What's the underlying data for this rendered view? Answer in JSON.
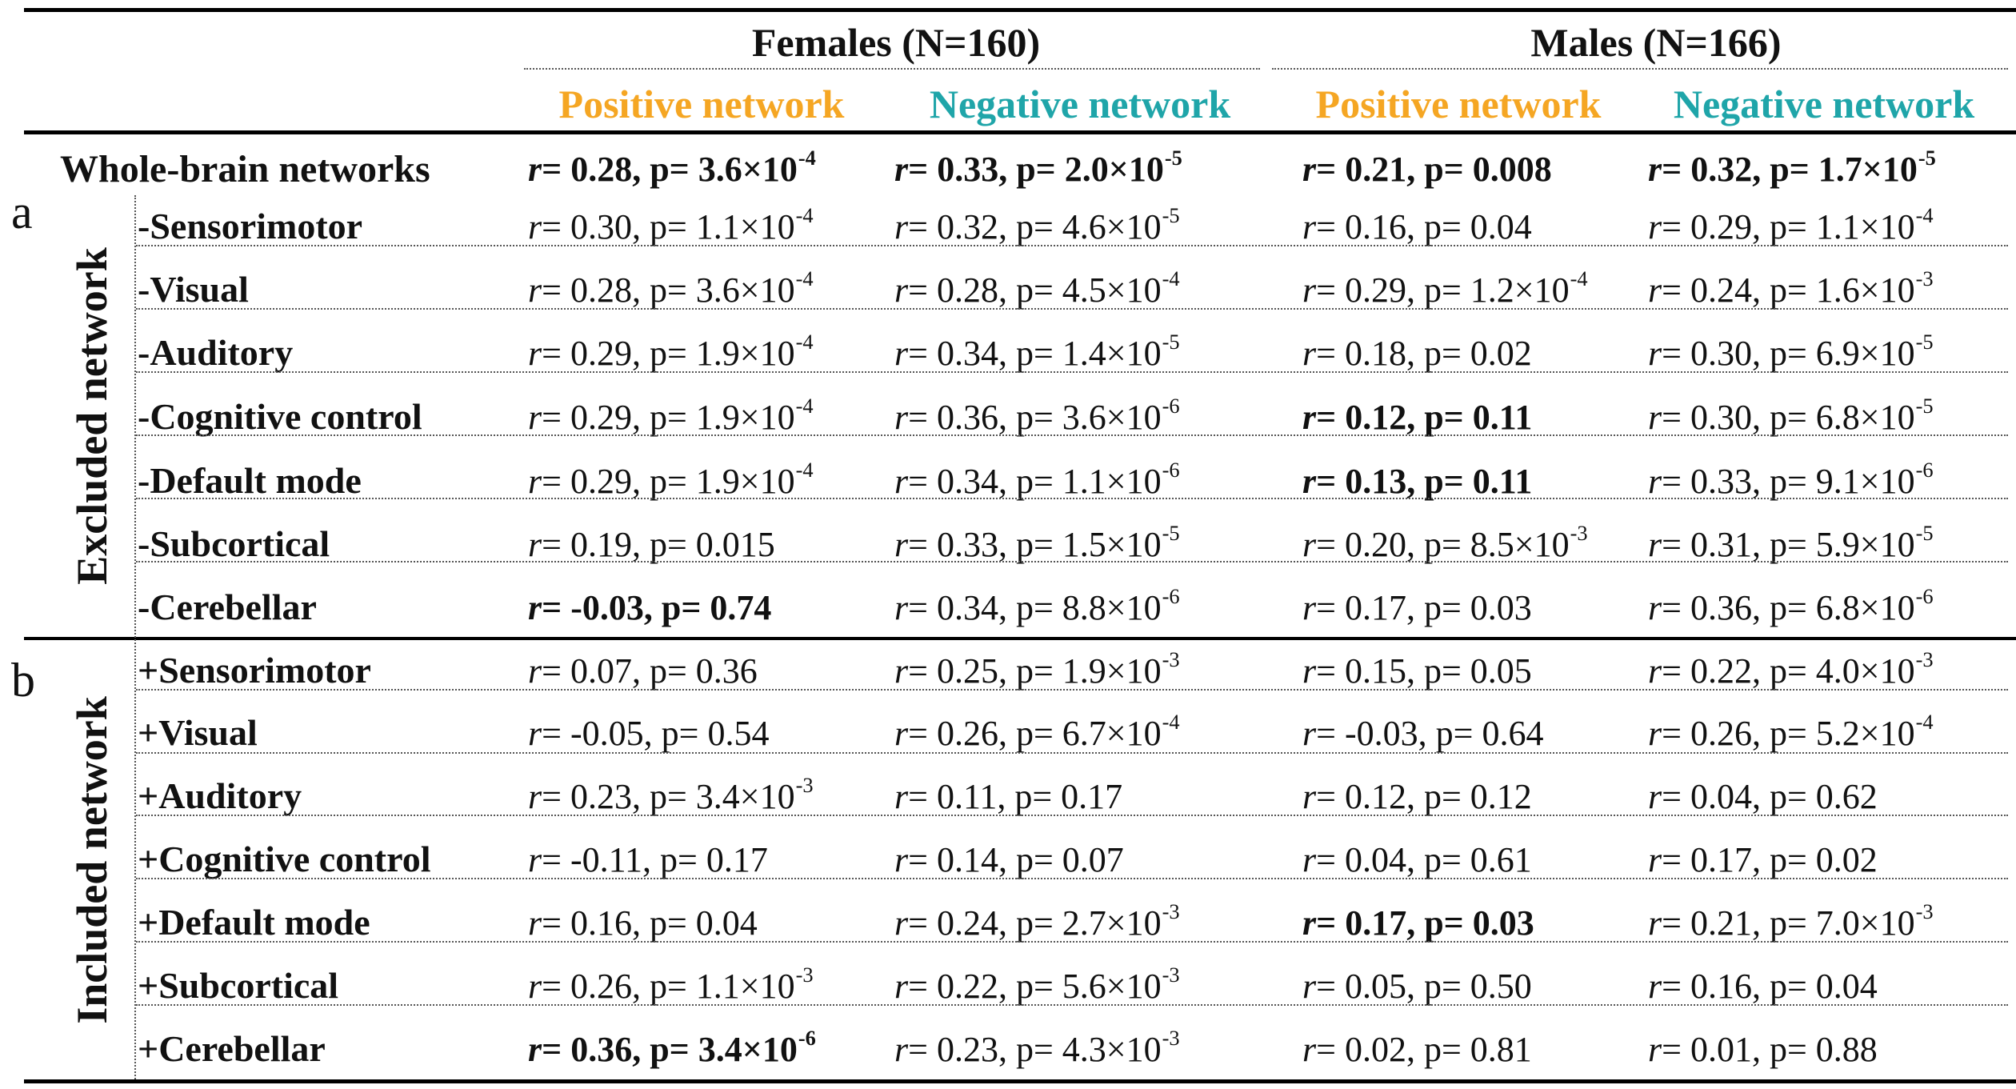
{
  "header": {
    "groups": [
      {
        "label": "Females (N=160)"
      },
      {
        "label": "Males (N=166)"
      }
    ],
    "networks": [
      {
        "label": "Positive network",
        "color": "#f5a623"
      },
      {
        "label": "Negative network",
        "color": "#1fa5a9"
      },
      {
        "label": "Positive network",
        "color": "#f5a623"
      },
      {
        "label": "Negative network",
        "color": "#1fa5a9"
      }
    ]
  },
  "rows": [
    {
      "label": "Whole-brain networks",
      "cells": [
        {
          "r": "0.28",
          "p": "3.6×10",
          "exp": "-4",
          "bold": true
        },
        {
          "r": "0.33",
          "p": "2.0×10",
          "exp": "-5",
          "bold": true
        },
        {
          "r": "0.21",
          "p": "0.008",
          "exp": "",
          "bold": true
        },
        {
          "r": "0.32",
          "p": "1.7×10",
          "exp": "-5",
          "bold": true
        }
      ]
    },
    {
      "label": "-Sensorimotor",
      "cells": [
        {
          "r": "0.30",
          "p": "1.1×10",
          "exp": "-4",
          "bold": false
        },
        {
          "r": "0.32",
          "p": "4.6×10",
          "exp": "-5",
          "bold": false
        },
        {
          "r": "0.16",
          "p": "0.04",
          "exp": "",
          "bold": false
        },
        {
          "r": "0.29",
          "p": "1.1×10",
          "exp": "-4",
          "bold": false
        }
      ]
    },
    {
      "label": "-Visual",
      "cells": [
        {
          "r": "0.28",
          "p": "3.6×10",
          "exp": "-4",
          "bold": false
        },
        {
          "r": "0.28",
          "p": "4.5×10",
          "exp": "-4",
          "bold": false
        },
        {
          "r": "0.29",
          "p": "1.2×10",
          "exp": "-4",
          "bold": false
        },
        {
          "r": "0.24",
          "p": "1.6×10",
          "exp": "-3",
          "bold": false
        }
      ]
    },
    {
      "label": "-Auditory",
      "cells": [
        {
          "r": "0.29",
          "p": "1.9×10",
          "exp": "-4",
          "bold": false
        },
        {
          "r": "0.34",
          "p": "1.4×10",
          "exp": "-5",
          "bold": false
        },
        {
          "r": "0.18",
          "p": "0.02",
          "exp": "",
          "bold": false
        },
        {
          "r": "0.30",
          "p": "6.9×10",
          "exp": "-5",
          "bold": false
        }
      ]
    },
    {
      "label": "-Cognitive control",
      "cells": [
        {
          "r": "0.29",
          "p": "1.9×10",
          "exp": "-4",
          "bold": false
        },
        {
          "r": "0.36",
          "p": "3.6×10",
          "exp": "-6",
          "bold": false
        },
        {
          "r": "0.12",
          "p": "0.11",
          "exp": "",
          "bold": true
        },
        {
          "r": "0.30",
          "p": "6.8×10",
          "exp": "-5",
          "bold": false
        }
      ]
    },
    {
      "label": "-Default mode",
      "cells": [
        {
          "r": "0.29",
          "p": "1.9×10",
          "exp": "-4",
          "bold": false
        },
        {
          "r": "0.34",
          "p": "1.1×10",
          "exp": "-6",
          "bold": false
        },
        {
          "r": "0.13",
          "p": "0.11",
          "exp": "",
          "bold": true
        },
        {
          "r": "0.33",
          "p": "9.1×10",
          "exp": "-6",
          "bold": false
        }
      ]
    },
    {
      "label": "-Subcortical",
      "cells": [
        {
          "r": "0.19",
          "p": "0.015",
          "exp": "",
          "bold": false
        },
        {
          "r": "0.33",
          "p": "1.5×10",
          "exp": "-5",
          "bold": false
        },
        {
          "r": "0.20",
          "p": "8.5×10",
          "exp": "-3",
          "bold": false
        },
        {
          "r": "0.31",
          "p": "5.9×10",
          "exp": "-5",
          "bold": false
        }
      ]
    },
    {
      "label": "-Cerebellar",
      "cells": [
        {
          "r": "-0.03",
          "p": "0.74",
          "exp": "",
          "bold": true
        },
        {
          "r": "0.34",
          "p": "8.8×10",
          "exp": "-6",
          "bold": false
        },
        {
          "r": "0.17",
          "p": "0.03",
          "exp": "",
          "bold": false
        },
        {
          "r": "0.36",
          "p": "6.8×10",
          "exp": "-6",
          "bold": false
        }
      ]
    },
    {
      "label": "+Sensorimotor",
      "cells": [
        {
          "r": "0.07",
          "p": "0.36",
          "exp": "",
          "bold": false
        },
        {
          "r": "0.25",
          "p": "1.9×10",
          "exp": "-3",
          "bold": false
        },
        {
          "r": "0.15",
          "p": "0.05",
          "exp": "",
          "bold": false
        },
        {
          "r": "0.22",
          "p": "4.0×10",
          "exp": "-3",
          "bold": false
        }
      ]
    },
    {
      "label": "+Visual",
      "cells": [
        {
          "r": "-0.05",
          "p": "0.54",
          "exp": "",
          "bold": false
        },
        {
          "r": "0.26",
          "p": "6.7×10",
          "exp": "-4",
          "bold": false
        },
        {
          "r": "-0.03",
          "p": "0.64",
          "exp": "",
          "bold": false
        },
        {
          "r": "0.26",
          "p": "5.2×10",
          "exp": "-4",
          "bold": false
        }
      ]
    },
    {
      "label": "+Auditory",
      "cells": [
        {
          "r": "0.23",
          "p": "3.4×10",
          "exp": "-3",
          "bold": false
        },
        {
          "r": "0.11",
          "p": "0.17",
          "exp": "",
          "bold": false
        },
        {
          "r": "0.12",
          "p": "0.12",
          "exp": "",
          "bold": false
        },
        {
          "r": "0.04",
          "p": "0.62",
          "exp": "",
          "bold": false
        }
      ]
    },
    {
      "label": "+Cognitive control",
      "cells": [
        {
          "r": "-0.11",
          "p": "0.17",
          "exp": "",
          "bold": false
        },
        {
          "r": "0.14",
          "p": "0.07",
          "exp": "",
          "bold": false
        },
        {
          "r": "0.04",
          "p": "0.61",
          "exp": "",
          "bold": false
        },
        {
          "r": "0.17",
          "p": "0.02",
          "exp": "",
          "bold": false
        }
      ]
    },
    {
      "label": "+Default mode",
      "cells": [
        {
          "r": "0.16",
          "p": "0.04",
          "exp": "",
          "bold": false
        },
        {
          "r": "0.24",
          "p": "2.7×10",
          "exp": "-3",
          "bold": false
        },
        {
          "r": "0.17",
          "p": "0.03",
          "exp": "",
          "bold": true
        },
        {
          "r": "0.21",
          "p": "7.0×10",
          "exp": "-3",
          "bold": false
        }
      ]
    },
    {
      "label": "+Subcortical",
      "cells": [
        {
          "r": "0.26",
          "p": "1.1×10",
          "exp": "-3",
          "bold": false
        },
        {
          "r": "0.22",
          "p": "5.6×10",
          "exp": "-3",
          "bold": false
        },
        {
          "r": "0.05",
          "p": "0.50",
          "exp": "",
          "bold": false
        },
        {
          "r": "0.16",
          "p": "0.04",
          "exp": "",
          "bold": false
        }
      ]
    },
    {
      "label": "+Cerebellar",
      "cells": [
        {
          "r": "0.36",
          "p": "3.4×10",
          "exp": "-6",
          "bold": true
        },
        {
          "r": "0.23",
          "p": "4.3×10",
          "exp": "-3",
          "bold": false
        },
        {
          "r": "0.02",
          "p": "0.81",
          "exp": "",
          "bold": false
        },
        {
          "r": "0.01",
          "p": "0.88",
          "exp": "",
          "bold": false
        }
      ]
    }
  ],
  "sections": [
    {
      "letter": "a",
      "label": "Excluded network"
    },
    {
      "letter": "b",
      "label": "Included network"
    }
  ],
  "cell_prefix_r": "r",
  "cell_eq": "= ",
  "cell_sep": ", p= "
}
